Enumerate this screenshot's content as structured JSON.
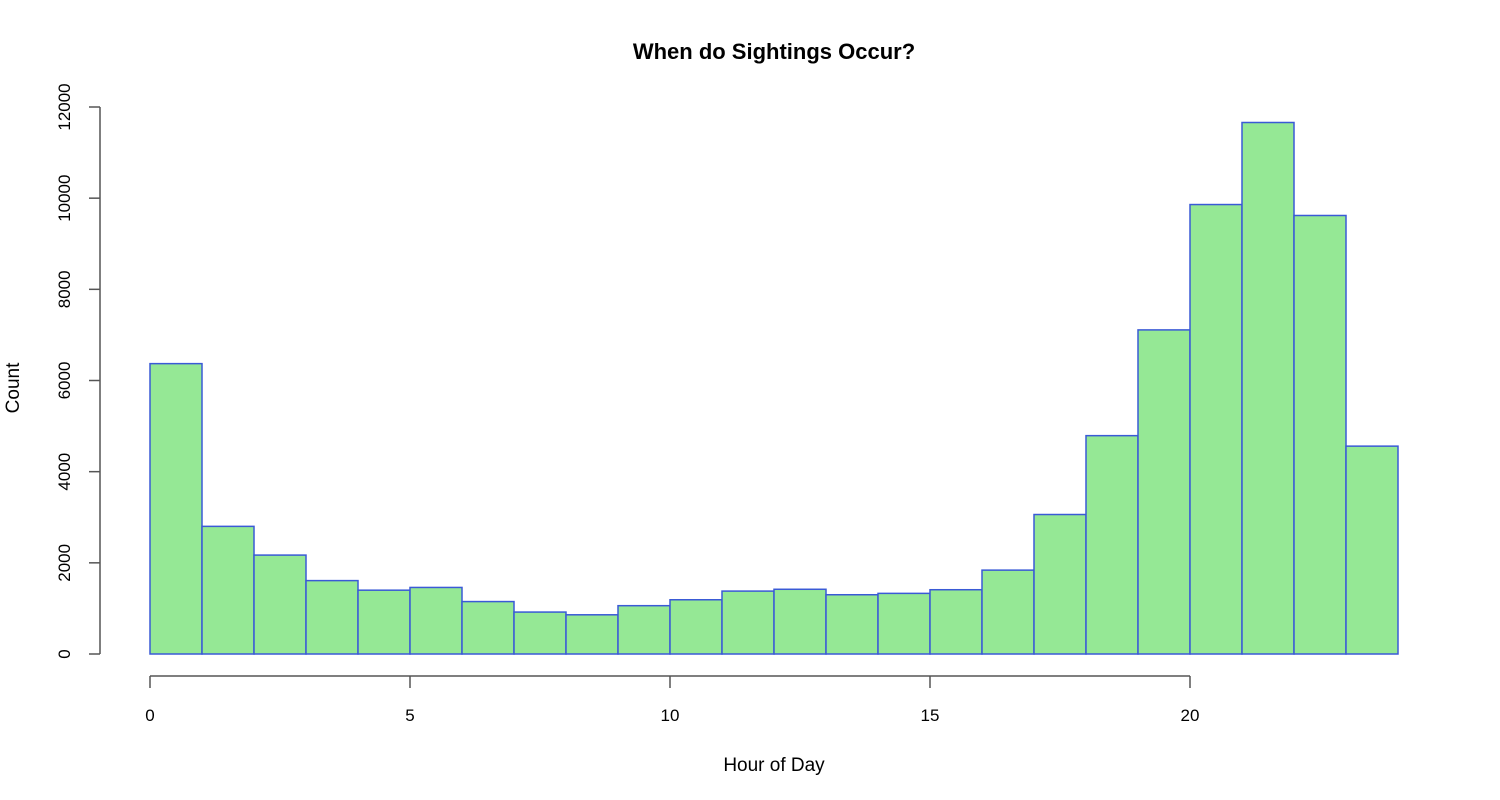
{
  "chart_data": {
    "type": "bar",
    "title": "When do Sightings Occur?",
    "xlabel": "Hour of Day",
    "ylabel": "Count",
    "bin_edges": [
      0,
      1,
      2,
      3,
      4,
      5,
      6,
      7,
      8,
      9,
      10,
      11,
      12,
      13,
      14,
      15,
      16,
      17,
      18,
      19,
      20,
      21,
      22,
      23,
      24
    ],
    "values": [
      6370,
      2800,
      2170,
      1610,
      1400,
      1460,
      1150,
      920,
      860,
      1060,
      1190,
      1380,
      1420,
      1300,
      1330,
      1410,
      1840,
      3060,
      4790,
      7110,
      9860,
      11660,
      9620,
      4560
    ],
    "xlim": [
      0,
      24
    ],
    "ylim": [
      0,
      12000
    ],
    "xticks": [
      0,
      5,
      10,
      15,
      20
    ],
    "yticks": [
      0,
      2000,
      4000,
      6000,
      8000,
      10000,
      12000
    ],
    "colors": {
      "fill": "#95e895",
      "border": "#3a5ad6"
    },
    "grid": false
  }
}
